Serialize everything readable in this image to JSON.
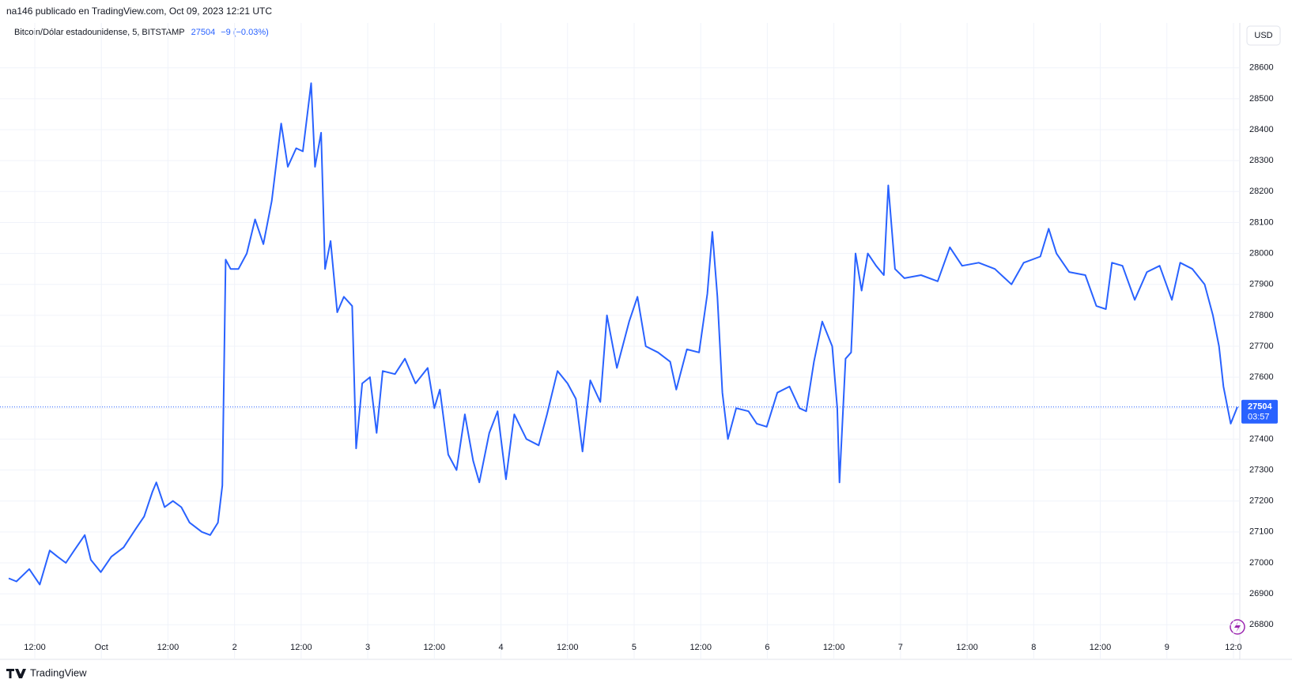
{
  "header": {
    "title": "na146 publicado en TradingView.com, Oct 09, 2023 12:21 UTC"
  },
  "chart_data": {
    "type": "line",
    "symbol": "Bitcoin/Dólar estadounidense, 5, BITSTAMP",
    "last_value": 27504,
    "change": "−9 (−0.03%)",
    "countdown": "03:57",
    "currency": "USD",
    "brand": "TradingView",
    "color": "#2962ff",
    "grid": true,
    "xlim": [
      -16.7,
      205
    ],
    "ylim": [
      26770,
      28745
    ],
    "yticks": [
      26800,
      26900,
      27000,
      27100,
      27200,
      27300,
      27400,
      27500,
      27600,
      27700,
      27800,
      27900,
      28000,
      28100,
      28200,
      28300,
      28400,
      28500,
      28600
    ],
    "xticks": [
      {
        "value": -12,
        "label": "12:00"
      },
      {
        "value": 0,
        "label": "Oct"
      },
      {
        "value": 12,
        "label": "12:00"
      },
      {
        "value": 24,
        "label": "2"
      },
      {
        "value": 36,
        "label": "12:00"
      },
      {
        "value": 48,
        "label": "3"
      },
      {
        "value": 60,
        "label": "12:00"
      },
      {
        "value": 72,
        "label": "4"
      },
      {
        "value": 84,
        "label": "12:00"
      },
      {
        "value": 96,
        "label": "5"
      },
      {
        "value": 108,
        "label": "12:00"
      },
      {
        "value": 120,
        "label": "6"
      },
      {
        "value": 132,
        "label": "12:00"
      },
      {
        "value": 144,
        "label": "7"
      },
      {
        "value": 156,
        "label": "12:00"
      },
      {
        "value": 168,
        "label": "8"
      },
      {
        "value": 180,
        "label": "12:00"
      },
      {
        "value": 192,
        "label": "9"
      },
      {
        "value": 204,
        "label": "12:0"
      }
    ],
    "x": [
      -16.7,
      -15.3,
      -13.0,
      -11.1,
      -9.3,
      -7.9,
      -6.4,
      -4.9,
      -3.0,
      -1.9,
      -0.1,
      1.8,
      4.0,
      6.2,
      7.7,
      9.2,
      9.9,
      11.4,
      12.9,
      14.4,
      15.9,
      18.1,
      19.6,
      21.0,
      21.8,
      22.4,
      23.3,
      24.7,
      26.2,
      27.7,
      29.2,
      30.7,
      32.4,
      33.6,
      35.1,
      36.3,
      37.8,
      38.5,
      39.6,
      40.3,
      41.3,
      42.5,
      43.7,
      45.2,
      45.9,
      47.0,
      48.4,
      49.6,
      50.7,
      52.9,
      54.7,
      56.6,
      58.8,
      60.0,
      61.0,
      62.5,
      64.0,
      65.5,
      67.0,
      68.1,
      69.9,
      71.4,
      72.9,
      74.4,
      76.6,
      78.8,
      80.3,
      82.2,
      84.0,
      85.5,
      86.7,
      88.1,
      89.9,
      91.1,
      92.9,
      95.1,
      96.6,
      98.1,
      100.3,
      102.5,
      103.6,
      105.5,
      107.7,
      109.2,
      110.1,
      111.0,
      111.9,
      112.9,
      114.4,
      116.6,
      118.1,
      119.9,
      121.8,
      124.0,
      125.8,
      127.0,
      128.4,
      129.9,
      131.7,
      132.6,
      133.0,
      134.1,
      135.1,
      135.9,
      137.0,
      138.1,
      139.6,
      141.0,
      141.8,
      143.0,
      144.7,
      147.7,
      150.7,
      152.9,
      155.1,
      158.1,
      161.0,
      164.0,
      166.2,
      169.2,
      170.7,
      172.1,
      174.4,
      177.3,
      179.3,
      181.0,
      182.1,
      184.0,
      186.2,
      188.4,
      190.7,
      192.9,
      194.4,
      196.6,
      198.8,
      200.3,
      201.4,
      202.2,
      203.5,
      204.7
    ],
    "values": [
      26950,
      26940,
      26980,
      26930,
      27040,
      27020,
      27000,
      27040,
      27090,
      27010,
      26970,
      27020,
      27050,
      27110,
      27150,
      27230,
      27260,
      27180,
      27200,
      27180,
      27130,
      27100,
      27090,
      27130,
      27250,
      27980,
      27950,
      27950,
      28000,
      28110,
      28030,
      28170,
      28420,
      28280,
      28340,
      28330,
      28550,
      28280,
      28390,
      27950,
      28040,
      27810,
      27860,
      27830,
      27370,
      27580,
      27600,
      27420,
      27620,
      27610,
      27660,
      27580,
      27630,
      27500,
      27560,
      27350,
      27300,
      27480,
      27330,
      27260,
      27420,
      27490,
      27270,
      27480,
      27400,
      27380,
      27480,
      27620,
      27580,
      27530,
      27360,
      27590,
      27520,
      27800,
      27630,
      27780,
      27860,
      27700,
      27680,
      27650,
      27560,
      27690,
      27680,
      27870,
      28070,
      27860,
      27550,
      27400,
      27500,
      27490,
      27450,
      27440,
      27550,
      27570,
      27500,
      27490,
      27650,
      27780,
      27700,
      27500,
      27260,
      27660,
      27680,
      28000,
      27880,
      28000,
      27960,
      27930,
      28220,
      27950,
      27920,
      27930,
      27910,
      28020,
      27960,
      27970,
      27950,
      27900,
      27970,
      27990,
      28080,
      28000,
      27940,
      27930,
      27830,
      27820,
      27970,
      27960,
      27850,
      27940,
      27960,
      27850,
      27970,
      27950,
      27900,
      27800,
      27700,
      27570,
      27450,
      27504
    ]
  }
}
